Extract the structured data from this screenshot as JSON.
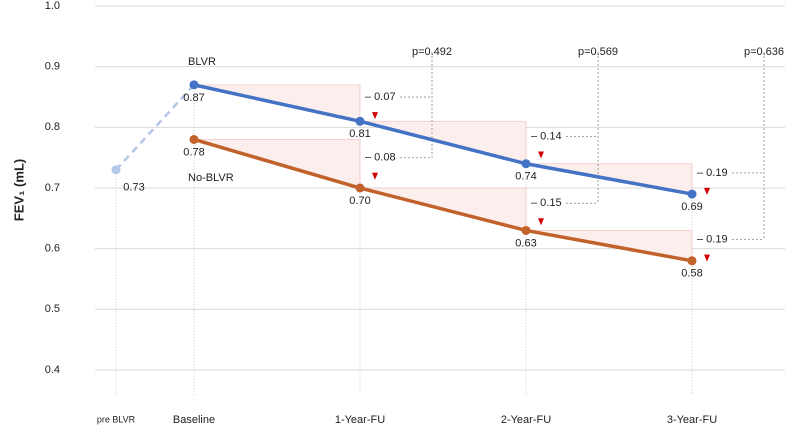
{
  "chart_data": {
    "type": "line",
    "ylabel": "FEV₁ (mL)",
    "categories": [
      "pre BLVR",
      "Baseline",
      "1-Year-FU",
      "2-Year-FU",
      "3-Year-FU"
    ],
    "ylim": [
      0.4,
      1.0
    ],
    "yticks": [
      0.4,
      0.5,
      0.6,
      0.7,
      0.8,
      0.9,
      {
        "value": 1.0,
        "label": "1.0"
      }
    ],
    "grid": true,
    "series": [
      {
        "name": "BLVR",
        "color": "#4472c4",
        "lead_color": "#b4c7e7",
        "values": [
          0.73,
          0.87,
          0.81,
          0.74,
          0.69
        ],
        "value_labels": [
          "0.73",
          "0.87",
          "0.81",
          "0.74",
          "0.69"
        ],
        "delta_labels": [
          null,
          null,
          "– 0.07",
          "– 0.14",
          "– 0.19"
        ]
      },
      {
        "name": "No-BLVR",
        "color": "#c0622a",
        "values": [
          null,
          0.78,
          0.7,
          0.63,
          0.58
        ],
        "value_labels": [
          null,
          "0.78",
          "0.70",
          "0.63",
          "0.58"
        ],
        "delta_labels": [
          null,
          null,
          "– 0.08",
          "– 0.15",
          "– 0.19"
        ]
      }
    ],
    "p_values": [
      null,
      null,
      "p=0.492",
      "p=0.569",
      "p=0.636"
    ]
  }
}
